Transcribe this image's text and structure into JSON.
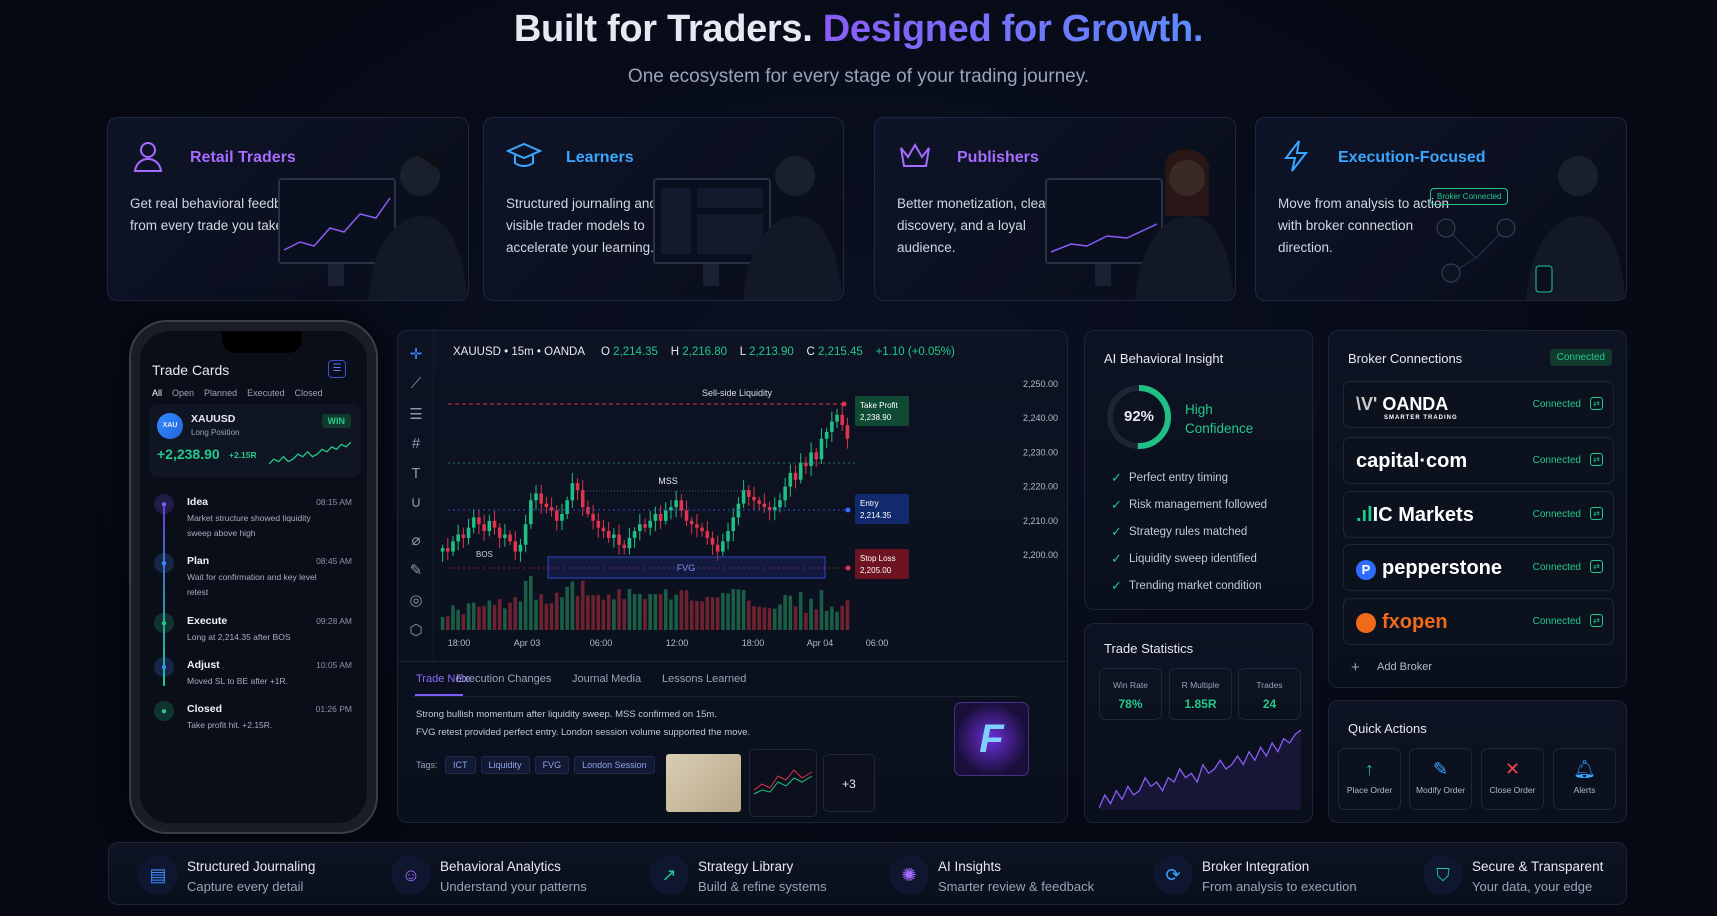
{
  "hero": {
    "title_part1": "Built for Traders.",
    "title_part2": "Designed for Growth.",
    "subtitle": "One ecosystem for every stage of your trading journey."
  },
  "audiences": [
    {
      "title": "Retail Traders",
      "description": "Get real behavioral feedback from every trade you take.",
      "icon": "user-icon",
      "color": "#a66bff"
    },
    {
      "title": "Learners",
      "description": "Structured journaling and visible trader models to accelerate your learning.",
      "icon": "graduation-cap-icon",
      "color": "#3aa6ff"
    },
    {
      "title": "Publishers",
      "description": "Better monetization, cleaner discovery, and a loyal audience.",
      "icon": "crown-icon",
      "color": "#a66bff"
    },
    {
      "title": "Execution-Focused",
      "description": "Move from analysis to action with broker connection direction.",
      "icon": "lightning-icon",
      "color": "#3aa6ff",
      "badge": "Broker Connected"
    }
  ],
  "phone": {
    "title": "Trade Cards",
    "filters": [
      "All",
      "Open",
      "Planned",
      "Executed",
      "Closed"
    ],
    "card": {
      "avatar": "XAU",
      "symbol": "XAUUSD",
      "position": "Long Position",
      "badge": "WIN",
      "pnl": "+2,238.90",
      "r": "+2.15R",
      "sparkline": [
        3,
        5,
        4,
        6,
        4,
        5,
        7,
        6,
        8,
        6,
        7,
        9,
        8,
        10,
        9,
        11,
        10,
        12
      ]
    },
    "timeline": [
      {
        "title": "Idea",
        "time": "08:15 AM",
        "desc": "Market structure showed liquidity sweep above high",
        "icon": "lightbulb-icon",
        "color": "#7b5cff"
      },
      {
        "title": "Plan",
        "time": "08:45 AM",
        "desc": "Wait for confirmation and key level retest",
        "icon": "calendar-icon",
        "color": "#3a8dff"
      },
      {
        "title": "Execute",
        "time": "09:28 AM",
        "desc": "Long at 2,214.35 after BOS",
        "icon": "play-icon",
        "color": "#22c98a"
      },
      {
        "title": "Adjust",
        "time": "10:05 AM",
        "desc": "Moved SL to BE after +1R.",
        "icon": "adjust-icon",
        "color": "#3a8dff"
      },
      {
        "title": "Closed",
        "time": "01:26 PM",
        "desc": "Take profit hit. +2.15R.",
        "icon": "check-icon",
        "color": "#22c98a"
      }
    ]
  },
  "chart": {
    "symbol": "XAUUSD • 15m • OANDA",
    "ohlc": {
      "o_label": "O",
      "o": "2,214.35",
      "h_label": "H",
      "h": "2,216.80",
      "l_label": "L",
      "l": "2,213.90",
      "c_label": "C",
      "c": "2,215.45",
      "change": "+1.10 (+0.05%)"
    },
    "price_ticks": [
      "2,250.00",
      "2,240.00",
      "2,230.00",
      "2,220.00",
      "2,210.00",
      "2,200.00"
    ],
    "time_ticks": [
      "18:00",
      "Apr 03",
      "06:00",
      "12:00",
      "18:00",
      "Apr 04",
      "06:00"
    ],
    "annotations": {
      "liquidity": "Sell-side Liquidity",
      "mss": "MSS",
      "fvg": "FVG",
      "bos": "BOS"
    },
    "levels": {
      "tp_label": "Take Profit",
      "tp": "2,238.90",
      "entry_label": "Entry",
      "entry": "2,214.35",
      "sl_label": "Stop Loss",
      "sl": "2,205.00"
    },
    "closes": [
      2202,
      2201,
      2204,
      2206,
      2205,
      2208,
      2211,
      2209,
      2207,
      2210,
      2208,
      2205,
      2206,
      2204,
      2201,
      2203,
      2209,
      2216,
      2218,
      2215,
      2214,
      2213,
      2210,
      2212,
      2216,
      2221,
      2219,
      2214,
      2212,
      2210,
      2208,
      2207,
      2205,
      2206,
      2203,
      2202,
      2205,
      2207,
      2209,
      2208,
      2210,
      2212,
      2210,
      2213,
      2214,
      2216,
      2213,
      2210,
      2209,
      2208,
      2207,
      2205,
      2203,
      2201,
      2204,
      2207,
      2211,
      2215,
      2219,
      2217,
      2216,
      2215,
      2214,
      2213,
      2214,
      2216,
      2220,
      2224,
      2222,
      2227,
      2226,
      2230,
      2228,
      2234,
      2236,
      2239,
      2241,
      2238,
      2234
    ],
    "colors": {
      "up": "#1fbf86",
      "down": "#e0334d"
    }
  },
  "note": {
    "tabs": [
      "Trade Note",
      "Execution Changes",
      "Journal Media",
      "Lessons Learned"
    ],
    "text1": "Strong bullish momentum after liquidity sweep. MSS confirmed on 15m.",
    "text2": "FVG retest provided perfect entry. London session volume supported the move.",
    "tags_label": "Tags:",
    "tags": [
      "ICT",
      "Liquidity",
      "FVG",
      "London Session"
    ],
    "more_media": "+3"
  },
  "insight": {
    "title": "AI Behavioral Insight",
    "score": "92%",
    "score_value": 0.92,
    "level_line1": "High",
    "level_line2": "Confidence",
    "checks": [
      "Perfect entry timing",
      "Risk management followed",
      "Strategy rules matched",
      "Liquidity sweep identified",
      "Trending market condition"
    ]
  },
  "stats": {
    "title": "Trade Statistics",
    "items": [
      {
        "label": "Win Rate",
        "value": "78%"
      },
      {
        "label": "R Multiple",
        "value": "1.85R"
      },
      {
        "label": "Trades",
        "value": "24"
      }
    ],
    "equity_curve": [
      2,
      5,
      3,
      6,
      4,
      7,
      5,
      6,
      9,
      7,
      8,
      6,
      9,
      8,
      11,
      9,
      10,
      8,
      12,
      10,
      11,
      13,
      11,
      12,
      14,
      12,
      15,
      13,
      16,
      14,
      17,
      15,
      18,
      17,
      19,
      20
    ]
  },
  "brokers": {
    "title": "Broker Connections",
    "status": "Connected",
    "add_label": "Add Broker",
    "items": [
      {
        "name": "OANDA",
        "sub": "SMARTER TRADING",
        "status": "Connected"
      },
      {
        "name": "capital·com",
        "status": "Connected"
      },
      {
        "name": "IC Markets",
        "status": "Connected"
      },
      {
        "name": "pepperstone",
        "status": "Connected"
      },
      {
        "name": "fxopen",
        "status": "Connected"
      }
    ]
  },
  "quick_actions": {
    "title": "Quick Actions",
    "items": [
      {
        "label": "Place Order",
        "icon": "arrow-up-icon",
        "color": "#22c98a"
      },
      {
        "label": "Modify Order",
        "icon": "pencil-icon",
        "color": "#3aa6ff"
      },
      {
        "label": "Close Order",
        "icon": "x-icon",
        "color": "#f0444e"
      },
      {
        "label": "Alerts",
        "icon": "bell-icon",
        "color": "#3aa6ff"
      }
    ]
  },
  "features": [
    {
      "title": "Structured Journaling",
      "sub": "Capture every detail",
      "icon": "journal-icon",
      "color": "#3a8dff"
    },
    {
      "title": "Behavioral Analytics",
      "sub": "Understand your patterns",
      "icon": "robot-icon",
      "color": "#a66bff"
    },
    {
      "title": "Strategy Library",
      "sub": "Build & refine systems",
      "icon": "chart-up-icon",
      "color": "#22c98a"
    },
    {
      "title": "AI Insights",
      "sub": "Smarter review & feedback",
      "icon": "ai-chip-icon",
      "color": "#a66bff"
    },
    {
      "title": "Broker Integration",
      "sub": "From analysis to execution",
      "icon": "sync-icon",
      "color": "#3aa6ff"
    },
    {
      "title": "Secure & Transparent",
      "sub": "Your data, your edge",
      "icon": "shield-check-icon",
      "color": "#22c98a"
    }
  ]
}
